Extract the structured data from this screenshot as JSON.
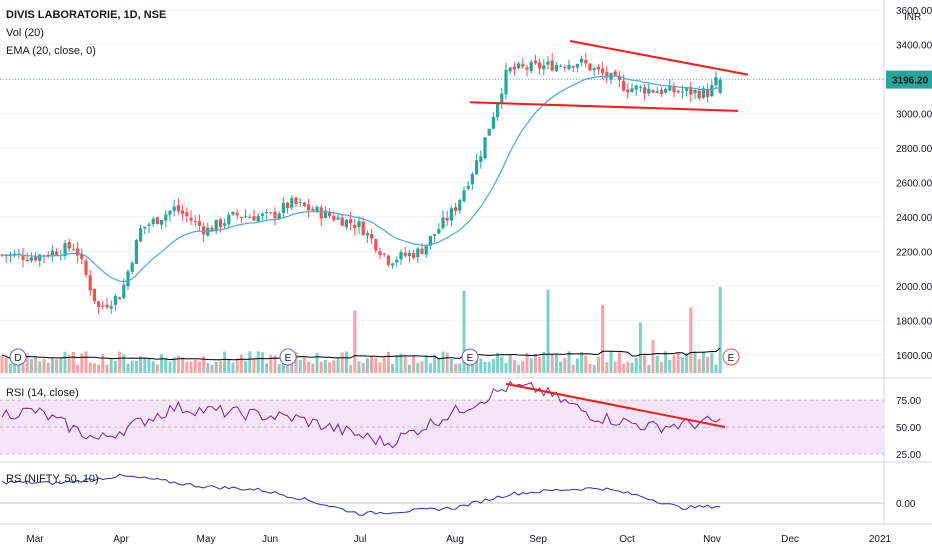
{
  "colors": {
    "up": "#26a69a",
    "down": "#ef5350",
    "ema": "#4aa8e0",
    "volma": "#000000",
    "trend": "#ff1a1a",
    "rsi": "#7b1fa2",
    "rsi_band": "#f3e5f5",
    "rs": "#2a2dbb",
    "pricebox": "#26a69a",
    "grid": "#f0f3fa"
  },
  "legend": {
    "title": "DIVIS LABORATORIE, 1D, NSE",
    "vol": "Vol (20)",
    "ema": "EMA (20, close, 0)",
    "rsi": "RSI (14, close)",
    "rs": "RS (NIFTY, 50, 10)"
  },
  "price_axis": {
    "unit": "INR",
    "ticks": [
      "3600.00",
      "3400.00",
      "3200.00",
      "3000.00",
      "2800.00",
      "2600.00",
      "2400.00",
      "2200.00",
      "2000.00",
      "1800.00",
      "1600.00"
    ],
    "last_price": "3196.20"
  },
  "rsi_axis": {
    "ticks": [
      "75.00",
      "50.00",
      "25.00"
    ]
  },
  "rs_axis": {
    "ticks": [
      "0.00"
    ]
  },
  "time_axis": [
    "Mar",
    "Apr",
    "May",
    "Jun",
    "Jul",
    "Aug",
    "Sep",
    "Oct",
    "Nov",
    "Dec",
    "2021"
  ],
  "event_markers": [
    {
      "label": "D",
      "month": "Mar"
    },
    {
      "label": "E",
      "month": "Jun"
    },
    {
      "label": "E",
      "month": "Aug"
    },
    {
      "label": "E",
      "month": "Nov"
    }
  ],
  "chart_data": {
    "type": "candlestick",
    "description_series": [
      {
        "name": "price_close_approx",
        "points": [
          [
            "Mar 1",
            2170
          ],
          [
            "Mar 15",
            2230
          ],
          [
            "Mar 23",
            1870
          ],
          [
            "Apr 1",
            1950
          ],
          [
            "Apr 8",
            2330
          ],
          [
            "Apr 20",
            2450
          ],
          [
            "May 1",
            2320
          ],
          [
            "May 15",
            2410
          ],
          [
            "Jun 1",
            2400
          ],
          [
            "Jun 8",
            2480
          ],
          [
            "Jun 22",
            2400
          ],
          [
            "Jul 1",
            2350
          ],
          [
            "Jul 10",
            2150
          ],
          [
            "Jul 20",
            2200
          ],
          [
            "Aug 1",
            2450
          ],
          [
            "Aug 10",
            2760
          ],
          [
            "Aug 20",
            3250
          ],
          [
            "Sep 1",
            3270
          ],
          [
            "Sep 15",
            3300
          ],
          [
            "Oct 1",
            3150
          ],
          [
            "Oct 15",
            3130
          ],
          [
            "Oct 30",
            3120
          ],
          [
            "Nov 3",
            3196.2
          ]
        ]
      },
      {
        "name": "rsi_approx",
        "points": [
          [
            "Mar 1",
            65
          ],
          [
            "Mar 23",
            38
          ],
          [
            "Apr 20",
            68
          ],
          [
            "Jun 10",
            58
          ],
          [
            "Jul 10",
            35
          ],
          [
            "Aug 20",
            87
          ],
          [
            "Sep 1",
            85
          ],
          [
            "Sep 20",
            60
          ],
          [
            "Oct 10",
            50
          ],
          [
            "Nov 3",
            55
          ]
        ]
      }
    ],
    "ema_period": 20,
    "rsi_levels": [
      75,
      50,
      25
    ]
  }
}
